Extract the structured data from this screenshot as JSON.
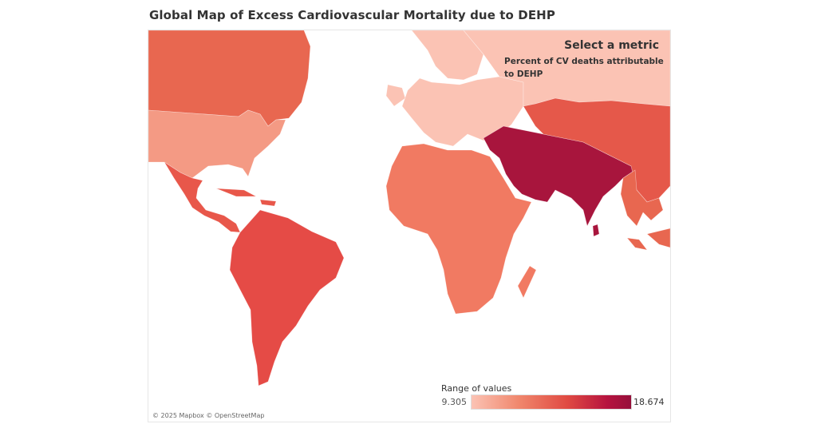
{
  "title": "Global Map of Excess Cardiovascular Mortality due to DEHP",
  "metric": {
    "heading": "Select a metric",
    "selected": "Percent of CV deaths attributable to DEHP"
  },
  "legend": {
    "title": "Range of values",
    "min": "9.305",
    "max": "18.674",
    "color_low": "#fbc3b4",
    "color_high": "#96103b"
  },
  "attribution": "© 2025 Mapbox © OpenStreetMap",
  "regions": [
    {
      "name": "Canada",
      "color": "#e86750"
    },
    {
      "name": "United States",
      "color": "#f49a84"
    },
    {
      "name": "Mexico and Central America",
      "color": "#e8574a"
    },
    {
      "name": "Caribbean",
      "color": "#e8574a"
    },
    {
      "name": "South America",
      "color": "#e54b46"
    },
    {
      "name": "Europe",
      "color": "#fbc3b4"
    },
    {
      "name": "Russia",
      "color": "#fbc3b4"
    },
    {
      "name": "Africa",
      "color": "#f17a62"
    },
    {
      "name": "Middle East and South Asia",
      "color": "#a8153d"
    },
    {
      "name": "Central and East Asia",
      "color": "#e5584a"
    },
    {
      "name": "Southeast Asia",
      "color": "#e86750"
    }
  ]
}
